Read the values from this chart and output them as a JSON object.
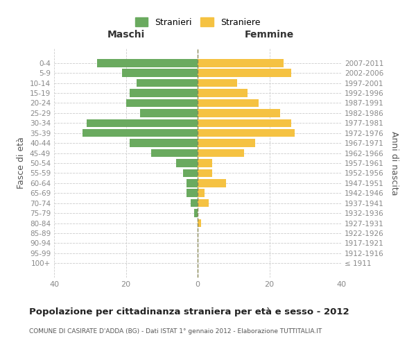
{
  "age_groups": [
    "0-4",
    "5-9",
    "10-14",
    "15-19",
    "20-24",
    "25-29",
    "30-34",
    "35-39",
    "40-44",
    "45-49",
    "50-54",
    "55-59",
    "60-64",
    "65-69",
    "70-74",
    "75-79",
    "80-84",
    "85-89",
    "90-94",
    "95-99",
    "100+"
  ],
  "birth_years": [
    "2007-2011",
    "2002-2006",
    "1997-2001",
    "1992-1996",
    "1987-1991",
    "1982-1986",
    "1977-1981",
    "1972-1976",
    "1967-1971",
    "1962-1966",
    "1957-1961",
    "1952-1956",
    "1947-1951",
    "1942-1946",
    "1937-1941",
    "1932-1936",
    "1927-1931",
    "1922-1926",
    "1917-1921",
    "1912-1916",
    "≤ 1911"
  ],
  "males": [
    28,
    21,
    17,
    19,
    20,
    16,
    31,
    32,
    19,
    13,
    6,
    4,
    3,
    3,
    2,
    1,
    0,
    0,
    0,
    0,
    0
  ],
  "females": [
    24,
    26,
    11,
    14,
    17,
    23,
    26,
    27,
    16,
    13,
    4,
    4,
    8,
    2,
    3,
    0,
    1,
    0,
    0,
    0,
    0
  ],
  "male_color": "#6aaa5f",
  "female_color": "#f5c242",
  "bar_height": 0.8,
  "xlim": 40,
  "title": "Popolazione per cittadinanza straniera per età e sesso - 2012",
  "subtitle": "COMUNE DI CASIRATE D'ADDA (BG) - Dati ISTAT 1° gennaio 2012 - Elaborazione TUTTITALIA.IT",
  "ylabel_left": "Fasce di età",
  "ylabel_right": "Anni di nascita",
  "label_maschi": "Maschi",
  "label_femmine": "Femmine",
  "legend_stranieri": "Stranieri",
  "legend_straniere": "Straniere",
  "background_color": "#ffffff",
  "grid_color": "#cccccc",
  "axis_label_color": "#555555",
  "tick_color": "#888888"
}
